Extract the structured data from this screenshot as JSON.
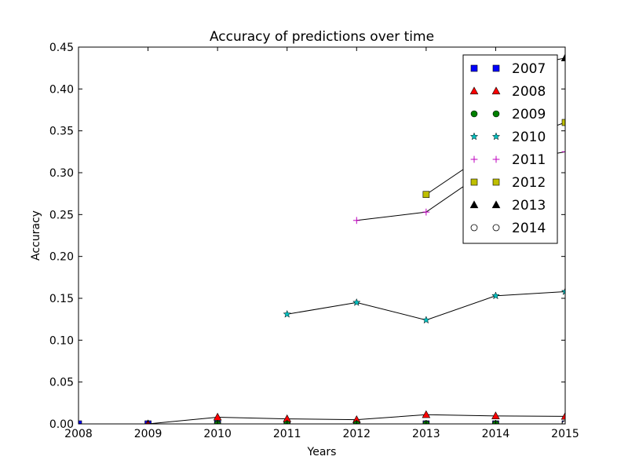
{
  "chart_data": {
    "type": "line",
    "title": "Accuracy of predictions over time",
    "xlabel": "Years",
    "ylabel": "Accuracy",
    "xlim": [
      2008,
      2015
    ],
    "ylim": [
      0,
      0.45
    ],
    "xticks": [
      "2008",
      "2009",
      "2010",
      "2011",
      "2012",
      "2013",
      "2014",
      "2015"
    ],
    "yticks": [
      "0.00",
      "0.05",
      "0.10",
      "0.15",
      "0.20",
      "0.25",
      "0.30",
      "0.35",
      "0.40",
      "0.45"
    ],
    "grid": false,
    "legend_position": "top-right",
    "series": [
      {
        "name": "2007",
        "marker": "square",
        "color": "#0000ff",
        "points": [
          [
            2008,
            0.0
          ],
          [
            2009,
            0.0
          ],
          [
            2010,
            0.0
          ],
          [
            2011,
            0.0
          ],
          [
            2012,
            0.0
          ],
          [
            2013,
            0.0
          ],
          [
            2014,
            0.0
          ],
          [
            2015,
            0.0
          ]
        ]
      },
      {
        "name": "2008",
        "marker": "triangle",
        "color": "#ff0000",
        "points": [
          [
            2009,
            0.0
          ],
          [
            2010,
            0.008
          ],
          [
            2011,
            0.006
          ],
          [
            2012,
            0.005
          ],
          [
            2013,
            0.011
          ],
          [
            2014,
            0.0095
          ],
          [
            2015,
            0.009
          ]
        ]
      },
      {
        "name": "2009",
        "marker": "circle",
        "color": "#008000",
        "points": [
          [
            2010,
            0.0
          ],
          [
            2011,
            0.0
          ],
          [
            2012,
            0.0
          ],
          [
            2013,
            0.0
          ],
          [
            2014,
            0.0
          ],
          [
            2015,
            0.0
          ]
        ]
      },
      {
        "name": "2010",
        "marker": "star",
        "color": "#00bfbf",
        "points": [
          [
            2011,
            0.131
          ],
          [
            2012,
            0.145
          ],
          [
            2013,
            0.124
          ],
          [
            2014,
            0.153
          ],
          [
            2015,
            0.158
          ]
        ]
      },
      {
        "name": "2011",
        "marker": "plus",
        "color": "#bf00bf",
        "points": [
          [
            2012,
            0.243
          ],
          [
            2013,
            0.253
          ],
          [
            2014,
            0.31
          ],
          [
            2015,
            0.325
          ]
        ]
      },
      {
        "name": "2012",
        "marker": "square",
        "color": "#bfbf00",
        "points": [
          [
            2013,
            0.274
          ],
          [
            2014,
            0.33
          ],
          [
            2015,
            0.36
          ]
        ]
      },
      {
        "name": "2013",
        "marker": "triangle",
        "color": "#000000",
        "points": [
          [
            2014,
            0.42
          ],
          [
            2015,
            0.437
          ]
        ]
      },
      {
        "name": "2014",
        "marker": "circle-open",
        "color": "#ffffff",
        "points": [
          [
            2015,
            0.0
          ]
        ]
      }
    ]
  }
}
